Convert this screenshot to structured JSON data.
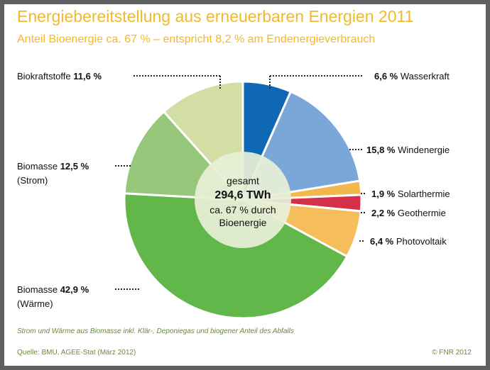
{
  "header": {
    "title": "Energiebereitstellung aus erneuerbaren Energien 2011",
    "subtitle": "Anteil Bioenergie ca. 67 % – entspricht 8,2 % am Endenergieverbrauch"
  },
  "footer": {
    "note": "Strom und Wärme aus Biomasse inkl. Klär-, Deponiegas und biogener Anteil des Abfalls",
    "source": "Quelle: BMU, AGEE-Stat (März 2012)",
    "copyright": "© FNR 2012"
  },
  "chart_data": {
    "type": "pie",
    "title": "Energiebereitstellung aus erneuerbaren Energien 2011",
    "center": {
      "line1": "gesamt",
      "line2": "294,6 TWh",
      "line3": "ca. 67 % durch",
      "line4": "Bioenergie"
    },
    "slices": [
      {
        "name": "Wasserkraft",
        "value_label": "6,6 %",
        "value": 6.6,
        "color": "#0f68b4"
      },
      {
        "name": "Windenergie",
        "value_label": "15,8 %",
        "value": 15.8,
        "color": "#7ba7d8"
      },
      {
        "name": "Solarthermie",
        "value_label": "1,9 %",
        "value": 1.9,
        "color": "#f2b84b"
      },
      {
        "name": "Geothermie",
        "value_label": "2,2 %",
        "value": 2.2,
        "color": "#d53049"
      },
      {
        "name": "Photovoltaik",
        "value_label": "6,4 %",
        "value": 6.4,
        "color": "#f6be5a"
      },
      {
        "name": "Biomasse",
        "sub": "(Wärme)",
        "value_label": "42,9 %",
        "value": 42.9,
        "color": "#62b74a"
      },
      {
        "name": "Biomasse",
        "sub": "(Strom)",
        "value_label": "12,5 %",
        "value": 12.5,
        "color": "#97c77a"
      },
      {
        "name": "Biokraftstoffe",
        "value_label": "11,6 %",
        "value": 11.6,
        "color": "#d3dea4"
      }
    ]
  }
}
